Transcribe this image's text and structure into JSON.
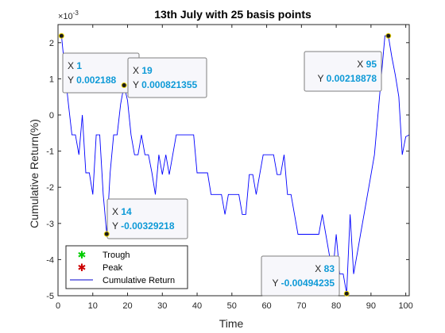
{
  "chart_data": {
    "type": "line",
    "title": "13th July with 25 basis points",
    "xlabel": "Time",
    "ylabel": "Cumulative Return(%)",
    "y_exponent_label": "×10^-3",
    "y_exponent_base": "×10",
    "y_exponent_power": "-3",
    "xlim": [
      0,
      101
    ],
    "ylim": [
      -5,
      2.5
    ],
    "y_unit_scale": 0.001,
    "x_ticks": [
      0,
      10,
      20,
      30,
      40,
      50,
      60,
      70,
      80,
      90,
      100
    ],
    "y_ticks": [
      -5,
      -4,
      -3,
      -2,
      -1,
      0,
      1,
      2
    ],
    "grid": false,
    "legend_position": "bottom-left",
    "legend": [
      {
        "label": "Trough",
        "marker": "*",
        "color": "#00cc00"
      },
      {
        "label": "Peak",
        "marker": "*",
        "color": "#cc0000"
      },
      {
        "label": "Cumulative Return",
        "marker": "line",
        "color": "#0000cc"
      }
    ],
    "series": [
      {
        "name": "Cumulative Return",
        "color": "#0000ff",
        "x": [
          1,
          2,
          3,
          4,
          5,
          6,
          7,
          8,
          9,
          10,
          11,
          12,
          13,
          14,
          15,
          16,
          17,
          18,
          19,
          20,
          21,
          22,
          23,
          24,
          25,
          26,
          27,
          28,
          29,
          30,
          31,
          32,
          33,
          34,
          35,
          36,
          37,
          38,
          39,
          40,
          41,
          42,
          43,
          44,
          45,
          46,
          47,
          48,
          49,
          50,
          51,
          52,
          53,
          54,
          55,
          56,
          57,
          58,
          59,
          60,
          61,
          62,
          63,
          64,
          65,
          66,
          67,
          68,
          69,
          70,
          71,
          72,
          73,
          74,
          75,
          76,
          77,
          78,
          79,
          80,
          81,
          82,
          83,
          84,
          85,
          86,
          87,
          88,
          89,
          90,
          91,
          92,
          93,
          94,
          95,
          96,
          97,
          98,
          99,
          100,
          101
        ],
        "y": [
          2.188,
          1.2,
          0.3,
          -0.55,
          -0.55,
          -1.1,
          0.0,
          -1.6,
          -1.6,
          -2.2,
          -0.55,
          -0.55,
          -2.2,
          -3.29,
          -1.6,
          -0.55,
          -0.55,
          0.3,
          0.821,
          0.4,
          -0.55,
          -1.1,
          -1.1,
          -0.55,
          -1.1,
          -1.1,
          -1.6,
          -2.2,
          -1.1,
          -1.65,
          -1.1,
          -1.65,
          -1.1,
          -0.55,
          -0.55,
          -0.55,
          -0.55,
          -0.55,
          -0.55,
          -1.6,
          -1.6,
          -1.6,
          -1.6,
          -2.2,
          -2.2,
          -2.2,
          -2.2,
          -2.75,
          -2.2,
          -2.2,
          -2.2,
          -2.2,
          -2.75,
          -2.75,
          -1.65,
          -1.65,
          -2.2,
          -1.65,
          -1.1,
          -1.1,
          -1.1,
          -1.1,
          -1.65,
          -1.65,
          -1.1,
          -2.2,
          -2.2,
          -2.75,
          -3.3,
          -3.3,
          -3.3,
          -3.3,
          -3.3,
          -3.3,
          -3.3,
          -2.75,
          -3.3,
          -3.85,
          -4.4,
          -3.3,
          -4.4,
          -4.4,
          -4.942,
          -2.75,
          -4.4,
          -3.85,
          -3.3,
          -2.75,
          -2.2,
          -1.65,
          -1.1,
          0.0,
          1.1,
          2.19,
          2.189,
          1.6,
          1.1,
          0.5,
          -1.1,
          -0.6,
          -0.55
        ]
      }
    ],
    "annotations": [
      {
        "x": 1,
        "y": 0.002188,
        "x_label": "X",
        "x_value": "1",
        "y_label": "Y",
        "y_value": "0.002188",
        "kind": "peak"
      },
      {
        "x": 19,
        "y": 0.000821355,
        "x_label": "X",
        "x_value": "19",
        "y_label": "Y",
        "y_value": "0.000821355",
        "kind": "peak"
      },
      {
        "x": 14,
        "y": -0.00329218,
        "x_label": "X",
        "x_value": "14",
        "y_label": "Y",
        "y_value": "-0.00329218",
        "kind": "trough"
      },
      {
        "x": 95,
        "y": 0.00218878,
        "x_label": "X",
        "x_value": "95",
        "y_label": "Y",
        "y_value": "0.00218878",
        "kind": "peak"
      },
      {
        "x": 83,
        "y": -0.00494235,
        "x_label": "X",
        "x_value": "83",
        "y_label": "Y",
        "y_value": "-0.00494235",
        "kind": "trough"
      }
    ]
  }
}
